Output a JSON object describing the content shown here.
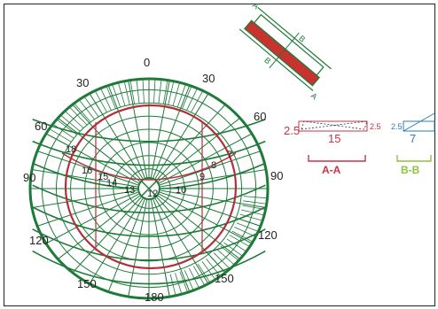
{
  "colors": {
    "grid": "#1f7a3a",
    "sun_path": "#b0303a",
    "section_aa": "#c8334a",
    "section_bb": "#8cc43c",
    "section_bb_values": "#2a7db8"
  },
  "azimuth_labels": [
    "0",
    "30",
    "60",
    "90",
    "120",
    "150",
    "180",
    "150",
    "120",
    "90",
    "60",
    "30"
  ],
  "hour_labels": [
    "18",
    "16",
    "15",
    "14",
    "13",
    "12",
    "10",
    "9",
    "8",
    "7"
  ],
  "section_aa": {
    "label": "A-A",
    "left_height": "2.5",
    "right_height": "2.5",
    "width": "15"
  },
  "section_bb": {
    "label": "B-B",
    "left_height": "2.5",
    "width": "7"
  },
  "section_marks": {
    "a": "A",
    "b": "B"
  }
}
